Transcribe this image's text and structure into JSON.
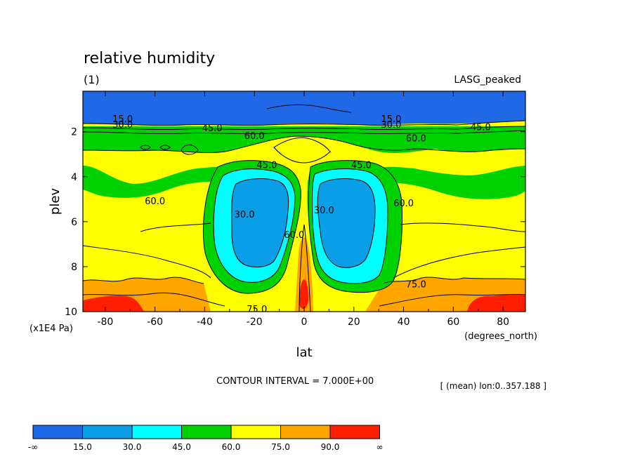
{
  "chart_data": {
    "type": "heatmap",
    "title": "relative humidity",
    "subtitle": "(1)",
    "dataset_label": "LASG_peaked",
    "xlabel": "lat",
    "xunits": "(degrees_north)",
    "ylabel": "plev",
    "yunits": "(x1E4 Pa)",
    "xlim": [
      -89,
      89
    ],
    "ylim": [
      10,
      0.2
    ],
    "x_ticks": [
      -80,
      -60,
      -40,
      -20,
      0,
      20,
      40,
      60,
      80
    ],
    "x_tick_labels": [
      "-80",
      "-60",
      "-40",
      "-20",
      "0",
      "20",
      "40",
      "60",
      "80"
    ],
    "y_ticks": [
      2,
      4,
      6,
      8,
      10
    ],
    "y_tick_labels": [
      "2",
      "4",
      "6",
      "8",
      "10"
    ],
    "contour_interval_text": "CONTOUR INTERVAL = 7.000E+00",
    "averaging_note": "[ (mean) lon:0..357.188 ]",
    "colorbar": {
      "levels": [
        "-∞",
        "15.0",
        "30.0",
        "45.0",
        "60.0",
        "75.0",
        "90.0",
        "∞"
      ],
      "colors": [
        "#1f69e6",
        "#0a9ee6",
        "#00ffff",
        "#00d200",
        "#ffff00",
        "#ffa500",
        "#ff1e00"
      ]
    },
    "fill_colors": {
      "band_0_15": "#1f69e6",
      "band_15_30": "#0a9ee6",
      "band_30_45": "#00ffff",
      "band_45_60": "#00d200",
      "band_60_75": "#ffff00",
      "band_75_90": "#ffa500",
      "band_90_plus": "#ff1e00"
    },
    "contour_labels": [
      {
        "text": "15.0",
        "lat": -73,
        "plev": 1.45
      },
      {
        "text": "30.0",
        "lat": -73,
        "plev": 1.7
      },
      {
        "text": "45.0",
        "lat": -37,
        "plev": 1.85
      },
      {
        "text": "60.0",
        "lat": -20,
        "plev": 2.2
      },
      {
        "text": "45.0",
        "lat": -15,
        "plev": 3.5
      },
      {
        "text": "60.0",
        "lat": -60,
        "plev": 5.1
      },
      {
        "text": "30.0",
        "lat": -24,
        "plev": 5.7
      },
      {
        "text": "60.0",
        "lat": -4,
        "plev": 6.6
      },
      {
        "text": "30.0",
        "lat": 8,
        "plev": 5.5
      },
      {
        "text": "45.0",
        "lat": 23,
        "plev": 3.5
      },
      {
        "text": "15.0",
        "lat": 35,
        "plev": 1.45
      },
      {
        "text": "30.0",
        "lat": 35,
        "plev": 1.7
      },
      {
        "text": "45.0",
        "lat": 71,
        "plev": 1.8
      },
      {
        "text": "60.0",
        "lat": 45,
        "plev": 2.3
      },
      {
        "text": "60.0",
        "lat": 40,
        "plev": 5.2
      },
      {
        "text": "75.0",
        "lat": 45,
        "plev": 8.8
      },
      {
        "text": "75.0",
        "lat": -19,
        "plev": 9.9
      }
    ]
  }
}
